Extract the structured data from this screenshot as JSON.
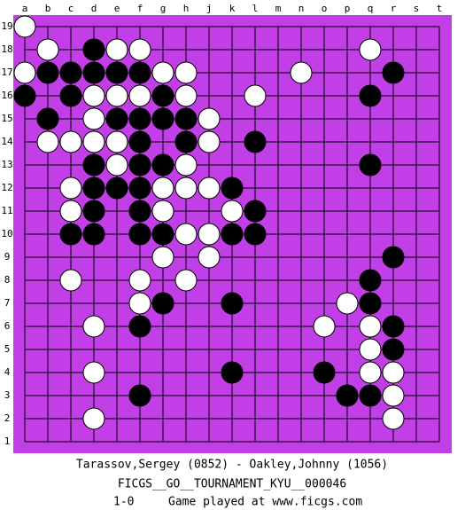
{
  "board": {
    "columns": [
      "a",
      "b",
      "c",
      "d",
      "e",
      "f",
      "g",
      "h",
      "j",
      "k",
      "l",
      "m",
      "n",
      "o",
      "p",
      "q",
      "r",
      "s",
      "t"
    ],
    "rows": [
      19,
      18,
      17,
      16,
      15,
      14,
      13,
      12,
      11,
      10,
      9,
      8,
      7,
      6,
      5,
      4,
      3,
      2,
      1
    ],
    "black": [
      "d18",
      "b17",
      "c17",
      "d17",
      "e17",
      "f17",
      "r17",
      "a16",
      "c16",
      "g16",
      "q16",
      "b15",
      "e15",
      "f15",
      "g15",
      "h15",
      "f14",
      "h14",
      "l14",
      "d13",
      "f13",
      "g13",
      "q13",
      "d12",
      "e12",
      "f12",
      "k12",
      "d11",
      "f11",
      "l11",
      "c10",
      "d10",
      "f10",
      "g10",
      "k10",
      "l10",
      "r9",
      "q8",
      "g7",
      "k7",
      "q7",
      "f6",
      "r6",
      "r5",
      "k4",
      "o4",
      "f3",
      "p3",
      "q3"
    ],
    "white": [
      "a19",
      "b18",
      "e18",
      "f18",
      "q18",
      "a17",
      "g17",
      "h17",
      "n17",
      "d16",
      "e16",
      "f16",
      "h16",
      "l16",
      "d15",
      "j15",
      "b14",
      "c14",
      "d14",
      "e14",
      "j14",
      "e13",
      "h13",
      "c12",
      "g12",
      "h12",
      "j12",
      "c11",
      "g11",
      "k11",
      "h10",
      "j10",
      "g9",
      "j9",
      "c8",
      "f8",
      "h8",
      "f7",
      "p7",
      "d6",
      "o6",
      "q6",
      "q5",
      "d4",
      "q4",
      "r4",
      "r3",
      "d2",
      "r2"
    ]
  },
  "footer": {
    "players": "Tarassov,Sergey (0852) - Oakley,Johnny (1056)",
    "event": "FICGS__GO__TOURNAMENT_KYU__000046",
    "result": "1-0",
    "note": "Game played at www.ficgs.com"
  }
}
